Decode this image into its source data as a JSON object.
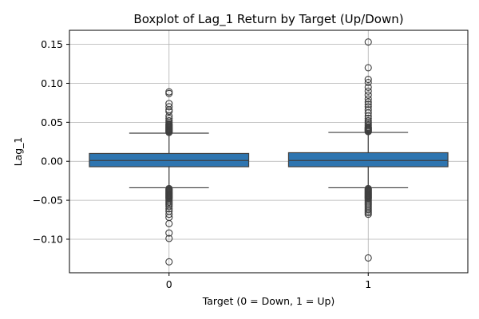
{
  "chart_data": {
    "type": "box",
    "title": "Boxplot of Lag_1 Return by Target (Up/Down)",
    "xlabel": "Target (0 = Down, 1 = Up)",
    "ylabel": "Lag_1",
    "ylim": [
      -0.143,
      0.168
    ],
    "yticks": [
      -0.1,
      -0.05,
      0.0,
      0.05,
      0.1,
      0.15
    ],
    "ytick_labels": [
      "−0.10",
      "−0.05",
      "0.00",
      "0.05",
      "0.10",
      "0.15"
    ],
    "grid": true,
    "box_color": "#2e75b0",
    "line_color": "#3f3f3f",
    "categories": [
      "0",
      "1"
    ],
    "boxes": [
      {
        "category": "0",
        "whisker_low": -0.034,
        "q1": -0.007,
        "median": 0.001,
        "q3": 0.01,
        "whisker_high": 0.036,
        "outliers_high": [
          0.037,
          0.038,
          0.039,
          0.04,
          0.041,
          0.042,
          0.043,
          0.044,
          0.045,
          0.046,
          0.047,
          0.048,
          0.05,
          0.052,
          0.055,
          0.058,
          0.064,
          0.066,
          0.07,
          0.074,
          0.087,
          0.089
        ],
        "outliers_low": [
          -0.035,
          -0.036,
          -0.037,
          -0.038,
          -0.039,
          -0.04,
          -0.041,
          -0.042,
          -0.043,
          -0.044,
          -0.045,
          -0.046,
          -0.047,
          -0.048,
          -0.05,
          -0.052,
          -0.054,
          -0.056,
          -0.058,
          -0.061,
          -0.064,
          -0.068,
          -0.072,
          -0.08,
          -0.092,
          -0.099,
          -0.129
        ]
      },
      {
        "category": "1",
        "whisker_low": -0.034,
        "q1": -0.007,
        "median": 0.001,
        "q3": 0.011,
        "whisker_high": 0.037,
        "outliers_high": [
          0.038,
          0.039,
          0.04,
          0.041,
          0.042,
          0.043,
          0.044,
          0.046,
          0.048,
          0.05,
          0.052,
          0.055,
          0.058,
          0.062,
          0.066,
          0.07,
          0.073,
          0.076,
          0.08,
          0.085,
          0.09,
          0.095,
          0.101,
          0.105,
          0.12,
          0.153
        ],
        "outliers_low": [
          -0.035,
          -0.036,
          -0.037,
          -0.038,
          -0.039,
          -0.04,
          -0.041,
          -0.042,
          -0.043,
          -0.044,
          -0.045,
          -0.046,
          -0.047,
          -0.048,
          -0.05,
          -0.052,
          -0.054,
          -0.056,
          -0.058,
          -0.06,
          -0.062,
          -0.064,
          -0.066,
          -0.068,
          -0.124
        ]
      }
    ]
  }
}
